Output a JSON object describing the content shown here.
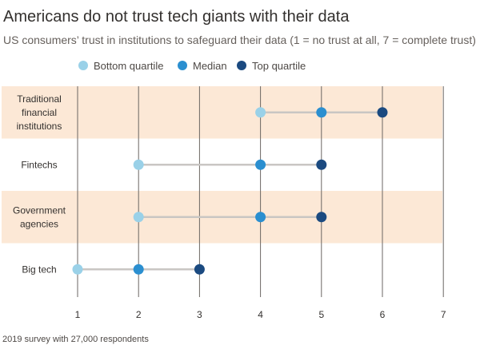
{
  "header": {
    "title": "Americans do not trust tech giants with their data",
    "subtitle": "US consumers’ trust in institutions to safeguard their data (1 = no trust at all, 7 = complete trust)"
  },
  "footer": {
    "source": "2019 survey with 27,000 respondents"
  },
  "colors": {
    "band": "#fce8d6",
    "connector": "#c9c6c3",
    "gridline": "#6b6663",
    "bottom_quartile": "#9ad1e8",
    "median": "#2b8fd0",
    "top_quartile": "#1b4a80"
  },
  "chart_data": {
    "type": "dot-range",
    "title": "Americans do not trust tech giants with their data",
    "subtitle": "US consumers’ trust in institutions to safeguard their data (1 = no trust at all, 7 = complete trust)",
    "categories": [
      [
        "Traditional",
        "financial",
        "institutions"
      ],
      [
        "Fintechs"
      ],
      [
        "Government",
        "agencies"
      ],
      [
        "Big tech"
      ]
    ],
    "series": [
      {
        "name": "Bottom quartile",
        "values": [
          4,
          2,
          2,
          1
        ]
      },
      {
        "name": "Median",
        "values": [
          5,
          4,
          4,
          2
        ]
      },
      {
        "name": "Top quartile",
        "values": [
          6,
          5,
          5,
          3
        ]
      }
    ],
    "xlim": [
      1,
      7
    ],
    "xticks": [
      1,
      2,
      3,
      4,
      5,
      6,
      7
    ],
    "grid": true,
    "legend": "top-left"
  }
}
